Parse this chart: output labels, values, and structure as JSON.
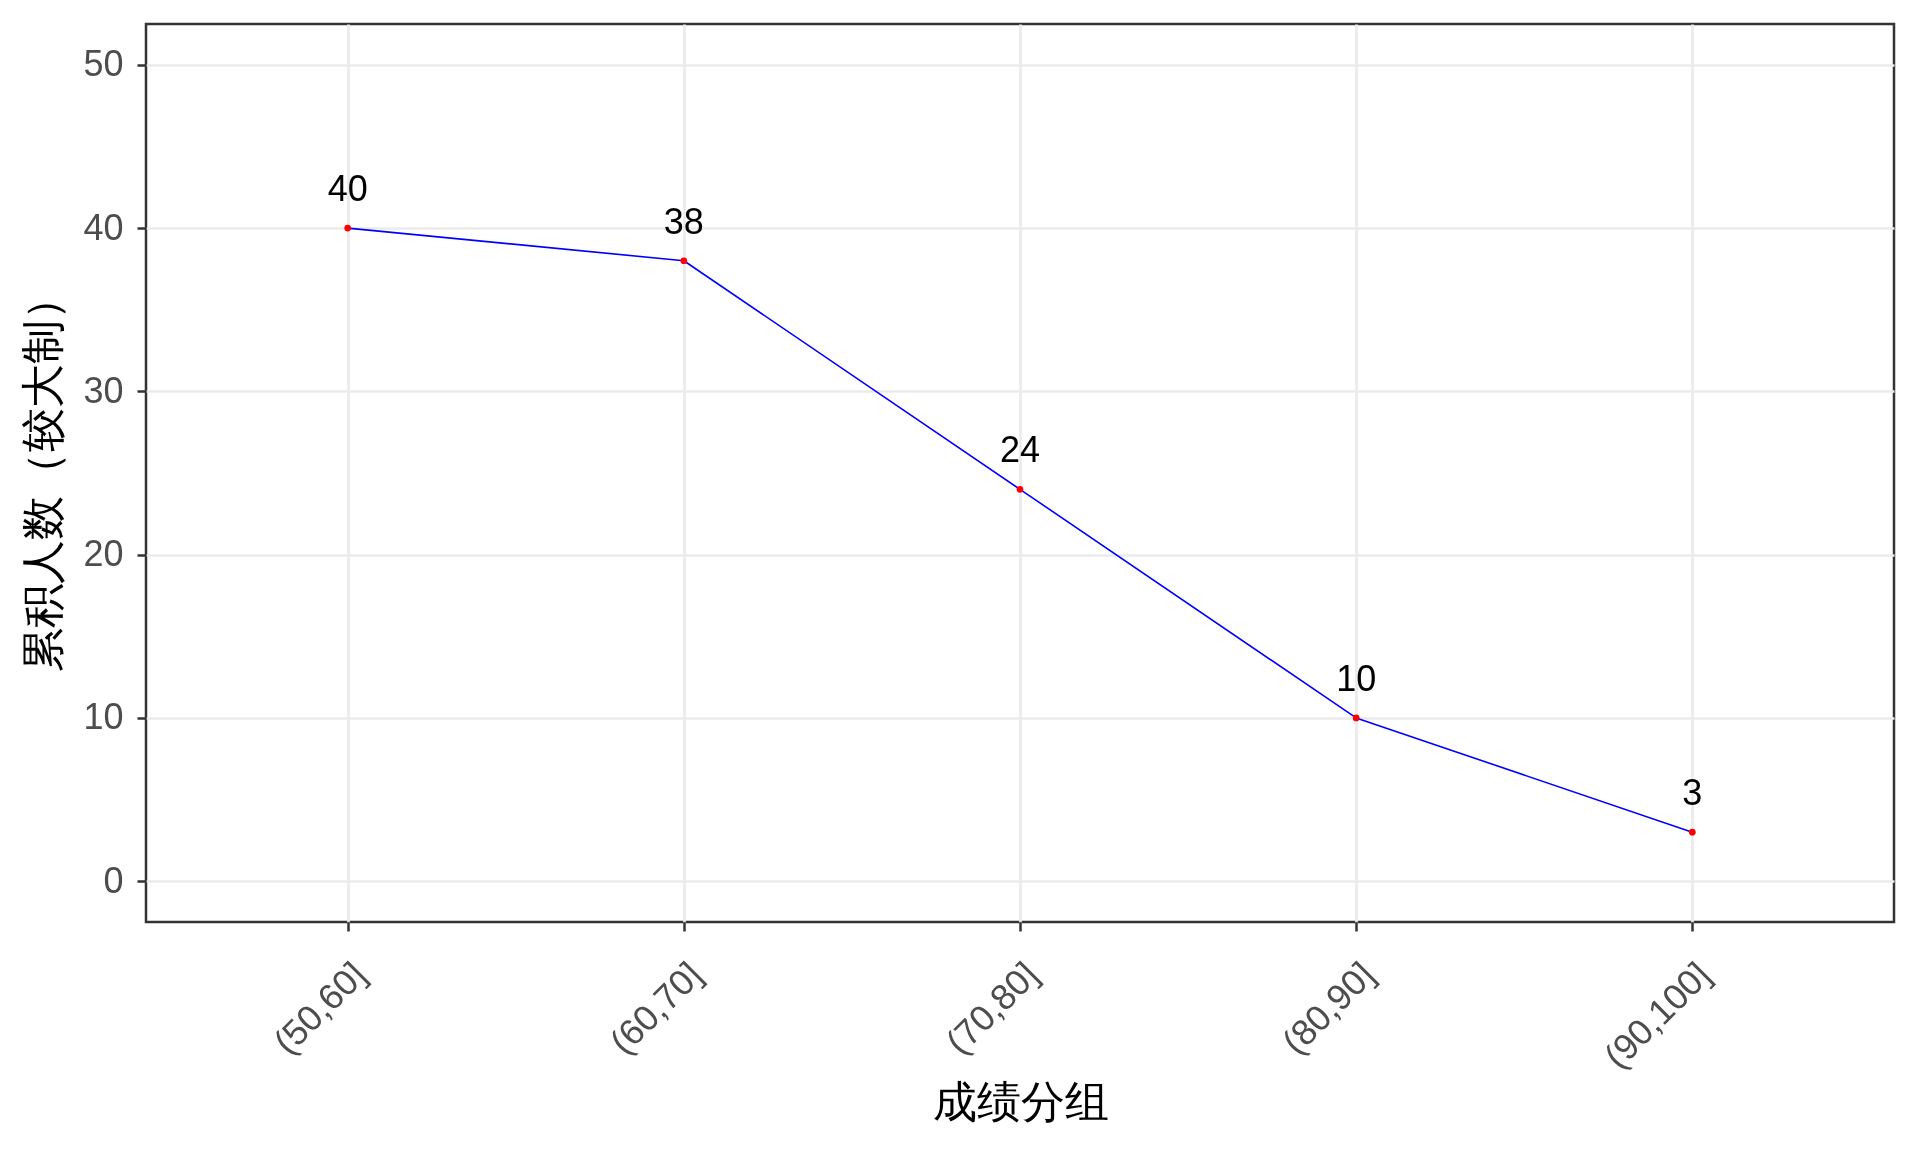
{
  "chart_data": {
    "type": "line",
    "xlabel": "成绩分组",
    "ylabel": "累积人数（较大制）",
    "categories": [
      "(50,60]",
      "(60,70]",
      "(70,80]",
      "(80,90]",
      "(90,100]"
    ],
    "series": [
      {
        "color": "#0000ff",
        "values": [
          40,
          38,
          24,
          10,
          3
        ]
      },
      {
        "type": "scatter",
        "color": "#ff0000",
        "marker": "circle",
        "values": [
          40,
          38,
          24,
          10,
          3
        ],
        "value_labels": [
          "40",
          "38",
          "24",
          "10",
          "3"
        ]
      }
    ],
    "ylim": [
      -2.5,
      52.5
    ],
    "yticks": [
      0,
      10,
      20,
      30,
      40,
      50
    ],
    "grid": true
  }
}
